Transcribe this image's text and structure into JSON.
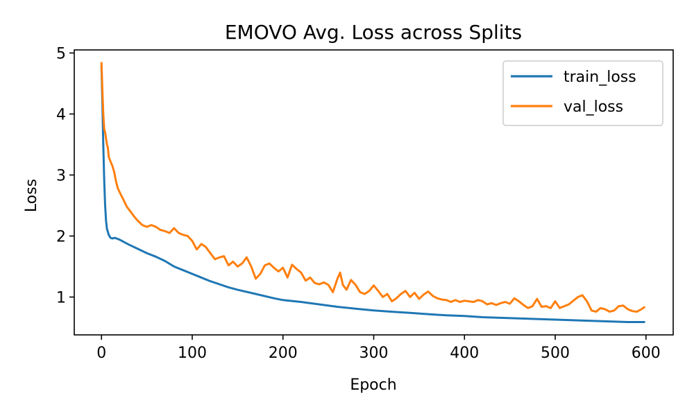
{
  "chart_data": {
    "type": "line",
    "title": "EMOVO Avg. Loss across Splits",
    "xlabel": "Epoch",
    "ylabel": "Loss",
    "xlim": [
      -30,
      630
    ],
    "ylim": [
      0.38,
      5.05
    ],
    "xticks": [
      0,
      100,
      200,
      300,
      400,
      500,
      600
    ],
    "yticks": [
      1,
      2,
      3,
      4,
      5
    ],
    "grid": false,
    "legend_position": "top-right",
    "series": [
      {
        "name": "train_loss",
        "color": "#1f77b4",
        "x": [
          0,
          1,
          2,
          3,
          4,
          5,
          6,
          8,
          10,
          12,
          15,
          20,
          25,
          30,
          40,
          50,
          60,
          70,
          80,
          90,
          100,
          110,
          120,
          130,
          140,
          150,
          170,
          190,
          200,
          220,
          240,
          260,
          280,
          300,
          320,
          340,
          360,
          380,
          400,
          420,
          440,
          460,
          480,
          500,
          520,
          540,
          560,
          580,
          599
        ],
        "y": [
          4.8,
          4.2,
          3.5,
          2.9,
          2.5,
          2.25,
          2.12,
          2.02,
          1.97,
          1.96,
          1.97,
          1.94,
          1.9,
          1.86,
          1.79,
          1.72,
          1.66,
          1.59,
          1.5,
          1.44,
          1.38,
          1.32,
          1.26,
          1.21,
          1.16,
          1.12,
          1.05,
          0.98,
          0.95,
          0.92,
          0.88,
          0.84,
          0.81,
          0.78,
          0.76,
          0.74,
          0.72,
          0.7,
          0.69,
          0.67,
          0.66,
          0.65,
          0.64,
          0.63,
          0.62,
          0.61,
          0.6,
          0.59,
          0.59
        ]
      },
      {
        "name": "val_loss",
        "color": "#ff7f0e",
        "x": [
          0,
          1,
          2,
          3,
          4,
          5,
          6,
          7,
          8,
          10,
          12,
          14,
          16,
          18,
          20,
          24,
          28,
          32,
          36,
          40,
          45,
          50,
          55,
          60,
          65,
          70,
          75,
          80,
          85,
          90,
          95,
          100,
          105,
          110,
          115,
          120,
          125,
          130,
          135,
          140,
          145,
          150,
          155,
          160,
          165,
          170,
          175,
          180,
          185,
          190,
          195,
          200,
          205,
          210,
          215,
          220,
          225,
          230,
          235,
          240,
          245,
          250,
          255,
          260,
          263,
          266,
          270,
          275,
          280,
          285,
          290,
          295,
          300,
          305,
          310,
          315,
          320,
          325,
          330,
          335,
          340,
          345,
          350,
          355,
          360,
          365,
          370,
          375,
          380,
          385,
          390,
          395,
          400,
          405,
          410,
          415,
          420,
          425,
          430,
          435,
          440,
          445,
          450,
          455,
          460,
          465,
          470,
          475,
          480,
          485,
          490,
          495,
          500,
          505,
          510,
          515,
          520,
          525,
          530,
          535,
          540,
          545,
          550,
          555,
          560,
          565,
          570,
          575,
          580,
          585,
          590,
          595,
          599
        ],
        "y": [
          4.85,
          4.4,
          4.0,
          3.75,
          3.7,
          3.6,
          3.5,
          3.45,
          3.3,
          3.22,
          3.15,
          3.05,
          2.9,
          2.78,
          2.72,
          2.6,
          2.48,
          2.4,
          2.32,
          2.25,
          2.18,
          2.15,
          2.18,
          2.15,
          2.1,
          2.08,
          2.05,
          2.13,
          2.05,
          2.02,
          2.0,
          1.92,
          1.78,
          1.87,
          1.82,
          1.72,
          1.62,
          1.65,
          1.67,
          1.52,
          1.58,
          1.5,
          1.55,
          1.65,
          1.5,
          1.3,
          1.38,
          1.52,
          1.55,
          1.48,
          1.42,
          1.48,
          1.32,
          1.53,
          1.46,
          1.4,
          1.27,
          1.32,
          1.23,
          1.21,
          1.24,
          1.2,
          1.08,
          1.3,
          1.4,
          1.2,
          1.12,
          1.28,
          1.2,
          1.08,
          1.05,
          1.1,
          1.19,
          1.1,
          1.0,
          1.05,
          0.93,
          0.98,
          1.05,
          1.1,
          1.0,
          1.07,
          0.97,
          1.04,
          1.09,
          1.02,
          0.98,
          0.96,
          0.95,
          0.92,
          0.95,
          0.92,
          0.94,
          0.93,
          0.92,
          0.95,
          0.93,
          0.88,
          0.9,
          0.87,
          0.9,
          0.92,
          0.89,
          0.98,
          0.93,
          0.87,
          0.82,
          0.85,
          0.97,
          0.84,
          0.85,
          0.82,
          0.93,
          0.82,
          0.85,
          0.88,
          0.94,
          1.0,
          1.03,
          0.93,
          0.78,
          0.76,
          0.82,
          0.8,
          0.76,
          0.78,
          0.85,
          0.86,
          0.8,
          0.77,
          0.76,
          0.8,
          0.84
        ]
      }
    ]
  }
}
